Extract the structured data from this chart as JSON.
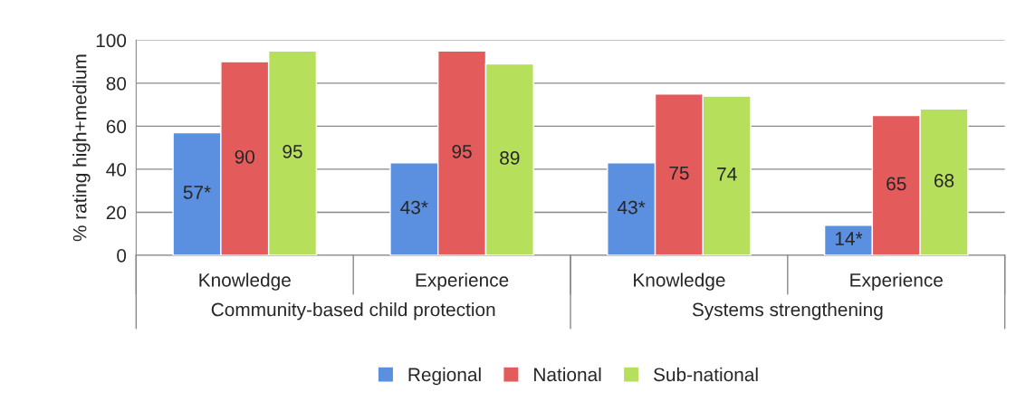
{
  "chart_data": {
    "type": "bar",
    "ylabel": "% rating high+medium",
    "categories": [
      "Knowledge",
      "Experience",
      "Knowledge",
      "Experience"
    ],
    "series": [
      {
        "name": "Regional",
        "color": "#5b8fe0",
        "values": [
          57,
          43,
          43,
          14
        ],
        "value_labels": [
          "57*",
          "43*",
          "43*",
          "14*"
        ]
      },
      {
        "name": "National",
        "color": "#e35b5b",
        "values": [
          90,
          95,
          75,
          65
        ],
        "value_labels": [
          "90",
          "95",
          "75",
          "65"
        ]
      },
      {
        "name": "Sub-national",
        "color": "#b6e05c",
        "values": [
          95,
          89,
          74,
          68
        ],
        "value_labels": [
          "95",
          "89",
          "74",
          "68"
        ]
      }
    ],
    "annotations": [
      "Community-based child protection",
      "Systems strengthening"
    ],
    "ylim": [
      0,
      100
    ],
    "yticks": [
      0,
      20,
      40,
      60,
      80,
      100
    ],
    "grid": "y",
    "legend": "bottom"
  }
}
